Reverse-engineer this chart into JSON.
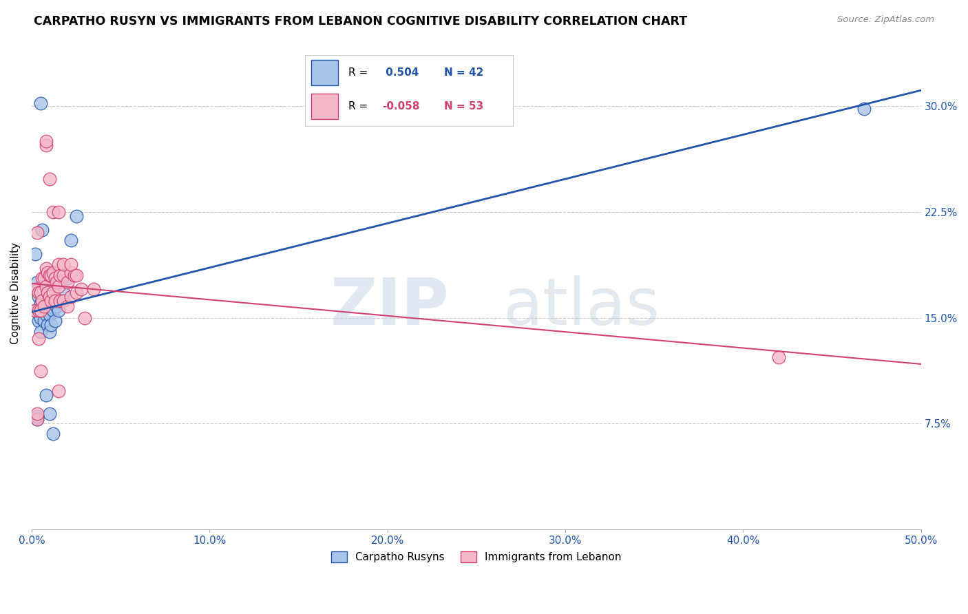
{
  "title": "CARPATHO RUSYN VS IMMIGRANTS FROM LEBANON COGNITIVE DISABILITY CORRELATION CHART",
  "source": "Source: ZipAtlas.com",
  "ylabel": "Cognitive Disability",
  "ytick_labels": [
    "7.5%",
    "15.0%",
    "22.5%",
    "30.0%"
  ],
  "ytick_values": [
    0.075,
    0.15,
    0.225,
    0.3
  ],
  "xlim": [
    0.0,
    0.5
  ],
  "ylim": [
    0.0,
    0.335
  ],
  "xtick_vals": [
    0.0,
    0.1,
    0.2,
    0.3,
    0.4,
    0.5
  ],
  "xtick_labels": [
    "0.0%",
    "10.0%",
    "20.0%",
    "30.0%",
    "40.0%",
    "50.0%"
  ],
  "legend_label1": "Carpatho Rusyns",
  "legend_label2": "Immigrants from Lebanon",
  "r1": "0.504",
  "n1": "42",
  "r2": "-0.058",
  "n2": "53",
  "color_blue": "#a8c4e8",
  "color_pink": "#f5b8c8",
  "line_color_blue": "#2255aa",
  "line_color_pink": "#d04070",
  "watermark_zip": "ZIP",
  "watermark_atlas": "atlas",
  "blue_x": [
    0.002,
    0.002,
    0.003,
    0.004,
    0.004,
    0.005,
    0.005,
    0.005,
    0.006,
    0.006,
    0.007,
    0.007,
    0.008,
    0.008,
    0.009,
    0.009,
    0.009,
    0.01,
    0.01,
    0.01,
    0.011,
    0.011,
    0.012,
    0.012,
    0.013,
    0.013,
    0.014,
    0.015,
    0.015,
    0.016,
    0.018,
    0.02,
    0.022,
    0.025,
    0.003,
    0.006,
    0.008,
    0.01,
    0.012,
    0.003,
    0.005,
    0.468
  ],
  "blue_y": [
    0.155,
    0.195,
    0.175,
    0.165,
    0.148,
    0.16,
    0.15,
    0.14,
    0.162,
    0.155,
    0.17,
    0.148,
    0.165,
    0.152,
    0.168,
    0.158,
    0.145,
    0.162,
    0.152,
    0.14,
    0.158,
    0.145,
    0.168,
    0.155,
    0.162,
    0.148,
    0.158,
    0.175,
    0.155,
    0.162,
    0.168,
    0.178,
    0.205,
    0.222,
    0.078,
    0.212,
    0.095,
    0.082,
    0.068,
    0.08,
    0.302,
    0.298
  ],
  "pink_x": [
    0.002,
    0.002,
    0.003,
    0.004,
    0.004,
    0.005,
    0.005,
    0.006,
    0.006,
    0.007,
    0.007,
    0.008,
    0.008,
    0.009,
    0.009,
    0.01,
    0.01,
    0.011,
    0.011,
    0.012,
    0.012,
    0.013,
    0.013,
    0.014,
    0.015,
    0.015,
    0.016,
    0.016,
    0.018,
    0.018,
    0.02,
    0.02,
    0.022,
    0.022,
    0.024,
    0.025,
    0.003,
    0.005,
    0.008,
    0.01,
    0.012,
    0.015,
    0.018,
    0.022,
    0.025,
    0.028,
    0.03,
    0.035,
    0.004,
    0.015,
    0.42,
    0.003,
    0.008
  ],
  "pink_y": [
    0.17,
    0.155,
    0.21,
    0.168,
    0.155,
    0.168,
    0.155,
    0.178,
    0.162,
    0.178,
    0.158,
    0.185,
    0.172,
    0.182,
    0.168,
    0.18,
    0.165,
    0.18,
    0.162,
    0.182,
    0.168,
    0.178,
    0.162,
    0.175,
    0.188,
    0.172,
    0.18,
    0.162,
    0.18,
    0.162,
    0.175,
    0.158,
    0.182,
    0.165,
    0.18,
    0.168,
    0.078,
    0.112,
    0.272,
    0.248,
    0.225,
    0.225,
    0.188,
    0.188,
    0.18,
    0.17,
    0.15,
    0.17,
    0.135,
    0.098,
    0.122,
    0.082,
    0.275
  ]
}
